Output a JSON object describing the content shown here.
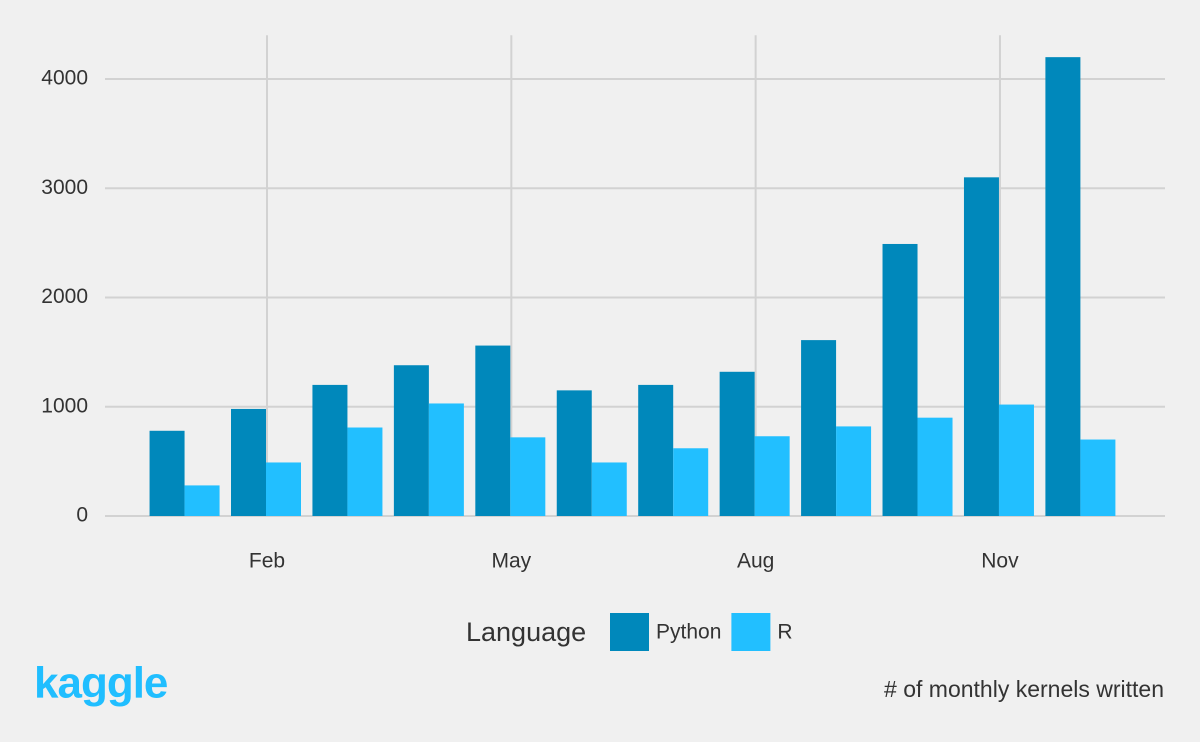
{
  "chart_data": {
    "type": "bar",
    "categories": [
      null,
      "Feb",
      null,
      null,
      "May",
      null,
      null,
      "Aug",
      null,
      null,
      "Nov",
      null
    ],
    "series": [
      {
        "name": "Python",
        "color": "#0088bb",
        "values": [
          780,
          980,
          1200,
          1380,
          1560,
          1150,
          1200,
          1320,
          1610,
          2490,
          3100,
          4200
        ]
      },
      {
        "name": "R",
        "color": "#22bfff",
        "values": [
          280,
          490,
          810,
          1030,
          720,
          490,
          620,
          730,
          820,
          900,
          1020,
          700
        ]
      }
    ],
    "ylim": [
      0,
      4400
    ],
    "yticks": [
      0,
      1000,
      2000,
      3000,
      4000
    ],
    "grid": true,
    "legend_title": "Language",
    "legend_position": "bottom",
    "caption": "# of monthly kernels written",
    "logo": "kaggle"
  }
}
